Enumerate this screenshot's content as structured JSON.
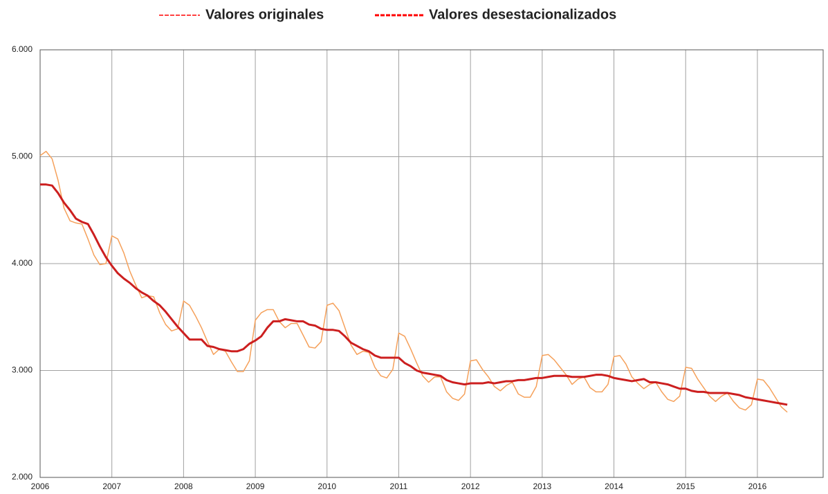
{
  "chart_data": {
    "type": "line",
    "xlim": [
      2006,
      2016.917
    ],
    "xticks": [
      2006,
      2007,
      2008,
      2009,
      2010,
      2011,
      2012,
      2013,
      2014,
      2015,
      2016
    ],
    "ylim": [
      2000,
      6000
    ],
    "yticks": [
      {
        "value": 2000,
        "label": "2.000"
      },
      {
        "value": 3000,
        "label": "3.000"
      },
      {
        "value": 4000,
        "label": "4.000"
      },
      {
        "value": 5000,
        "label": "5.000"
      },
      {
        "value": 6000,
        "label": "6.000"
      }
    ],
    "grid": true,
    "legend": "top",
    "legend_color": "#ff0000",
    "x": [
      2006,
      2006.083,
      2006.167,
      2006.25,
      2006.333,
      2006.417,
      2006.5,
      2006.583,
      2006.667,
      2006.75,
      2006.833,
      2006.917,
      2007,
      2007.083,
      2007.167,
      2007.25,
      2007.333,
      2007.417,
      2007.5,
      2007.583,
      2007.667,
      2007.75,
      2007.833,
      2007.917,
      2008,
      2008.083,
      2008.167,
      2008.25,
      2008.333,
      2008.417,
      2008.5,
      2008.583,
      2008.667,
      2008.75,
      2008.833,
      2008.917,
      2009,
      2009.083,
      2009.167,
      2009.25,
      2009.333,
      2009.417,
      2009.5,
      2009.583,
      2009.667,
      2009.75,
      2009.833,
      2009.917,
      2010,
      2010.083,
      2010.167,
      2010.25,
      2010.333,
      2010.417,
      2010.5,
      2010.583,
      2010.667,
      2010.75,
      2010.833,
      2010.917,
      2011,
      2011.083,
      2011.167,
      2011.25,
      2011.333,
      2011.417,
      2011.5,
      2011.583,
      2011.667,
      2011.75,
      2011.833,
      2011.917,
      2012,
      2012.083,
      2012.167,
      2012.25,
      2012.333,
      2012.417,
      2012.5,
      2012.583,
      2012.667,
      2012.75,
      2012.833,
      2012.917,
      2013,
      2013.083,
      2013.167,
      2013.25,
      2013.333,
      2013.417,
      2013.5,
      2013.583,
      2013.667,
      2013.75,
      2013.833,
      2013.917,
      2014,
      2014.083,
      2014.167,
      2014.25,
      2014.333,
      2014.417,
      2014.5,
      2014.583,
      2014.667,
      2014.75,
      2014.833,
      2014.917,
      2015,
      2015.083,
      2015.167,
      2015.25,
      2015.333,
      2015.417,
      2015.5,
      2015.583,
      2015.667,
      2015.75,
      2015.833,
      2015.917,
      2016,
      2016.083,
      2016.167,
      2016.25,
      2016.333,
      2016.417
    ],
    "series": [
      {
        "name": "Valores originales",
        "color": "#f5a05a",
        "width": 1.5,
        "values": [
          5010,
          5050,
          4980,
          4780,
          4520,
          4400,
          4380,
          4370,
          4230,
          4080,
          3990,
          4000,
          4260,
          4230,
          4100,
          3930,
          3800,
          3680,
          3700,
          3690,
          3540,
          3430,
          3370,
          3390,
          3650,
          3610,
          3510,
          3400,
          3270,
          3150,
          3200,
          3180,
          3080,
          2990,
          2990,
          3090,
          3470,
          3540,
          3570,
          3570,
          3460,
          3400,
          3440,
          3440,
          3330,
          3220,
          3210,
          3270,
          3610,
          3630,
          3560,
          3400,
          3240,
          3150,
          3180,
          3170,
          3030,
          2950,
          2930,
          3010,
          3350,
          3320,
          3200,
          3070,
          2950,
          2890,
          2940,
          2940,
          2800,
          2740,
          2720,
          2780,
          3090,
          3100,
          3010,
          2940,
          2850,
          2810,
          2860,
          2890,
          2780,
          2750,
          2750,
          2850,
          3140,
          3150,
          3100,
          3030,
          2960,
          2870,
          2920,
          2940,
          2840,
          2800,
          2800,
          2870,
          3130,
          3140,
          3060,
          2940,
          2880,
          2830,
          2870,
          2890,
          2800,
          2730,
          2710,
          2760,
          3030,
          3020,
          2920,
          2840,
          2760,
          2710,
          2760,
          2790,
          2710,
          2650,
          2630,
          2680,
          2920,
          2910,
          2840,
          2750,
          2660,
          2610
        ]
      },
      {
        "name": "Valores desestacionalizados",
        "color": "#cc1f1f",
        "width": 3,
        "values": [
          4740,
          4740,
          4730,
          4660,
          4570,
          4500,
          4420,
          4390,
          4370,
          4270,
          4160,
          4060,
          3980,
          3910,
          3860,
          3820,
          3770,
          3730,
          3700,
          3650,
          3610,
          3550,
          3480,
          3410,
          3350,
          3290,
          3290,
          3290,
          3230,
          3220,
          3200,
          3190,
          3180,
          3180,
          3200,
          3250,
          3280,
          3320,
          3400,
          3460,
          3460,
          3480,
          3470,
          3460,
          3460,
          3430,
          3420,
          3390,
          3380,
          3380,
          3370,
          3320,
          3260,
          3230,
          3200,
          3180,
          3140,
          3120,
          3120,
          3120,
          3120,
          3070,
          3040,
          3000,
          2980,
          2970,
          2960,
          2950,
          2910,
          2890,
          2880,
          2870,
          2880,
          2880,
          2880,
          2890,
          2880,
          2890,
          2900,
          2900,
          2910,
          2910,
          2920,
          2930,
          2930,
          2940,
          2950,
          2950,
          2950,
          2940,
          2940,
          2940,
          2950,
          2960,
          2960,
          2950,
          2930,
          2920,
          2910,
          2900,
          2910,
          2920,
          2890,
          2890,
          2880,
          2870,
          2850,
          2830,
          2830,
          2810,
          2800,
          2800,
          2790,
          2790,
          2790,
          2790,
          2780,
          2770,
          2750,
          2740,
          2730,
          2720,
          2710,
          2700,
          2690,
          2680
        ]
      }
    ]
  }
}
